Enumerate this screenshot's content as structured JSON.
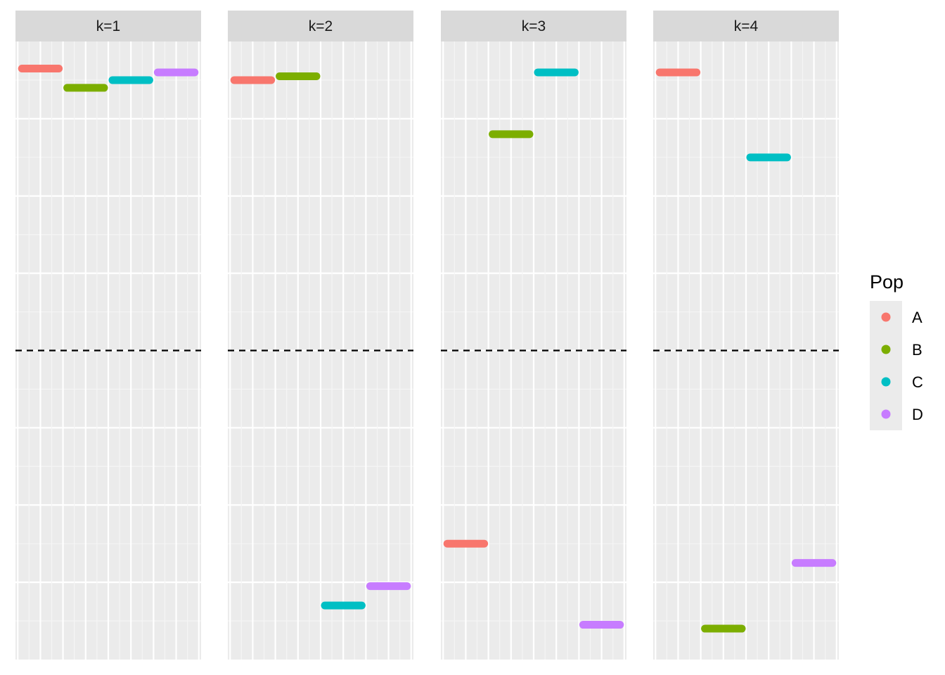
{
  "chart_data": {
    "type": "faceted-segment",
    "facets": [
      {
        "label": "k=1",
        "segments": [
          {
            "series": "A",
            "x_start": 0,
            "x_end": 1,
            "y": 0.73
          },
          {
            "series": "B",
            "x_start": 1,
            "x_end": 2,
            "y": 0.68
          },
          {
            "series": "C",
            "x_start": 2,
            "x_end": 3,
            "y": 0.7
          },
          {
            "series": "D",
            "x_start": 3,
            "x_end": 4,
            "y": 0.72
          }
        ]
      },
      {
        "label": "k=2",
        "segments": [
          {
            "series": "A",
            "x_start": 0,
            "x_end": 1,
            "y": 0.7
          },
          {
            "series": "B",
            "x_start": 1,
            "x_end": 2,
            "y": 0.71
          },
          {
            "series": "C",
            "x_start": 2,
            "x_end": 3,
            "y": -0.66
          },
          {
            "series": "D",
            "x_start": 3,
            "x_end": 4,
            "y": -0.61
          }
        ]
      },
      {
        "label": "k=3",
        "segments": [
          {
            "series": "A",
            "x_start": 0,
            "x_end": 1,
            "y": -0.5
          },
          {
            "series": "B",
            "x_start": 1,
            "x_end": 2,
            "y": 0.56
          },
          {
            "series": "C",
            "x_start": 2,
            "x_end": 3,
            "y": 0.72
          },
          {
            "series": "D",
            "x_start": 3,
            "x_end": 4,
            "y": -0.71
          }
        ]
      },
      {
        "label": "k=4",
        "segments": [
          {
            "series": "A",
            "x_start": 0,
            "x_end": 1,
            "y": 0.72
          },
          {
            "series": "B",
            "x_start": 1,
            "x_end": 2,
            "y": -0.72
          },
          {
            "series": "C",
            "x_start": 2,
            "x_end": 3,
            "y": 0.5
          },
          {
            "series": "D",
            "x_start": 3,
            "x_end": 4,
            "y": -0.55
          }
        ]
      }
    ],
    "ylim": [
      -0.8,
      0.8
    ],
    "xlim": [
      -0.05,
      4.05
    ],
    "reference_line": {
      "y": 0,
      "style": "dashed"
    },
    "grid": true,
    "legend": {
      "title": "Pop",
      "placement": "right",
      "entries": [
        {
          "label": "A",
          "color": "#F8766D"
        },
        {
          "label": "B",
          "color": "#7CAE00"
        },
        {
          "label": "C",
          "color": "#00BFC4"
        },
        {
          "label": "D",
          "color": "#C77CFF"
        }
      ]
    },
    "title": "",
    "xlabel": "",
    "ylabel": ""
  }
}
